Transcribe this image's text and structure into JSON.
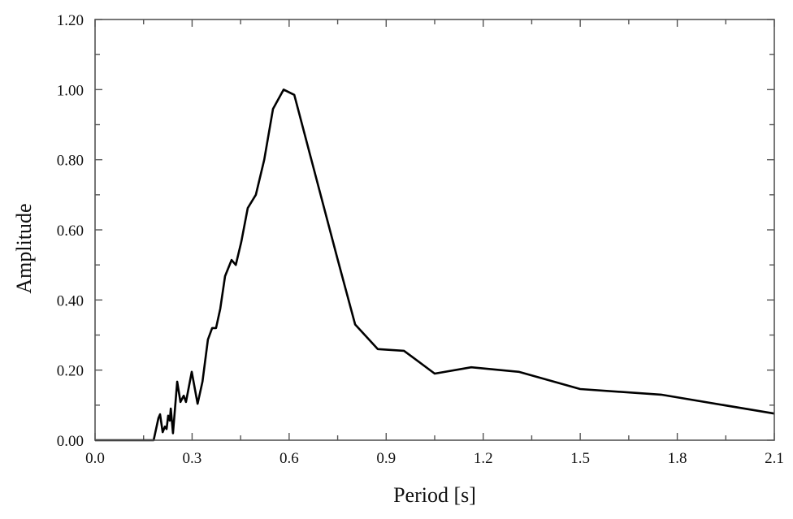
{
  "chart_data": {
    "type": "line",
    "title": "",
    "xlabel": "Period [s]",
    "ylabel": "Amplitude",
    "xlim": [
      0.0,
      2.1
    ],
    "ylim": [
      0.0,
      1.2
    ],
    "xticks": [
      "0.0",
      "0.3",
      "0.6",
      "0.9",
      "1.2",
      "1.5",
      "1.8",
      "2.1"
    ],
    "yticks": [
      "0.00",
      "0.20",
      "0.40",
      "0.60",
      "0.80",
      "1.00",
      "1.20"
    ],
    "grid": false,
    "series": [
      {
        "name": "Amplitude",
        "color": "#000000",
        "x": [
          0.0,
          0.181,
          0.196,
          0.201,
          0.209,
          0.216,
          0.221,
          0.226,
          0.231,
          0.234,
          0.241,
          0.254,
          0.264,
          0.274,
          0.281,
          0.299,
          0.317,
          0.332,
          0.349,
          0.362,
          0.374,
          0.387,
          0.402,
          0.422,
          0.435,
          0.452,
          0.472,
          0.497,
          0.523,
          0.55,
          0.583,
          0.616,
          0.749,
          0.804,
          0.874,
          0.955,
          1.05,
          1.163,
          1.31,
          1.5,
          1.75,
          2.1
        ],
        "y": [
          0.0,
          0.0,
          0.063,
          0.074,
          0.023,
          0.039,
          0.032,
          0.07,
          0.056,
          0.09,
          0.02,
          0.167,
          0.109,
          0.127,
          0.109,
          0.195,
          0.104,
          0.167,
          0.287,
          0.32,
          0.32,
          0.375,
          0.468,
          0.514,
          0.5,
          0.565,
          0.662,
          0.7,
          0.8,
          0.945,
          1.0,
          0.985,
          0.519,
          0.33,
          0.26,
          0.255,
          0.19,
          0.208,
          0.195,
          0.146,
          0.13,
          0.076
        ]
      }
    ]
  }
}
